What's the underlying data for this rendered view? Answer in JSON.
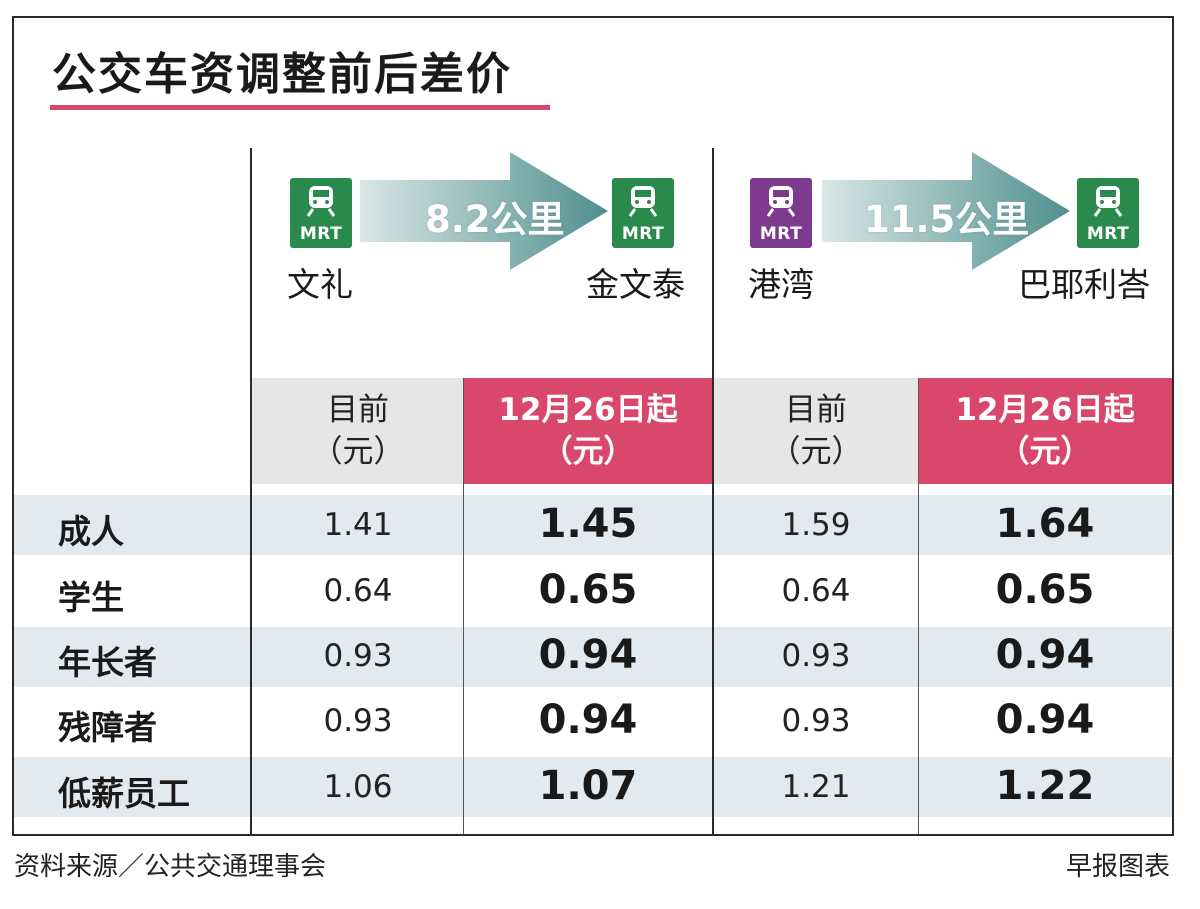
{
  "title": "公交车资调整前后差价",
  "routes": [
    {
      "from": "文礼",
      "to": "金文泰",
      "distance": "8.2公里",
      "from_line_color": "#2a8a4e",
      "to_line_color": "#2a8a4e",
      "from_badge": "MRT",
      "to_badge": "MRT",
      "from_icon": "train-icon",
      "to_icon": "train-icon"
    },
    {
      "from": "港湾",
      "to": "巴耶利峇",
      "distance": "11.5公里",
      "from_line_color": "#7d3a8f",
      "to_line_color": "#2a8a4e",
      "from_badge": "MRT",
      "to_badge": "MRT",
      "from_icon": "train-icon",
      "to_icon": "train-icon"
    }
  ],
  "column_headers": {
    "current_line1": "目前",
    "current_line2": "（元）",
    "new_line1": "12月26日起",
    "new_line2": "（元）"
  },
  "chart_data": {
    "type": "table",
    "title": "公交车资调整前后差价",
    "columns": [
      "文礼→金文泰 目前（元）",
      "文礼→金文泰 12月26日起（元）",
      "港湾→巴耶利峇 目前（元）",
      "港湾→巴耶利峇 12月26日起（元）"
    ],
    "rows": [
      {
        "category": "成人",
        "values": [
          "1.41",
          "1.45",
          "1.59",
          "1.64"
        ]
      },
      {
        "category": "学生",
        "values": [
          "0.64",
          "0.65",
          "0.64",
          "0.65"
        ]
      },
      {
        "category": "年长者",
        "values": [
          "0.93",
          "0.94",
          "0.93",
          "0.94"
        ]
      },
      {
        "category": "残障者",
        "values": [
          "0.93",
          "0.94",
          "0.93",
          "0.94"
        ]
      },
      {
        "category": "低薪员工",
        "values": [
          "1.06",
          "1.07",
          "1.21",
          "1.22"
        ]
      }
    ]
  },
  "colors": {
    "accent_red": "#d9486a",
    "row_shade": "#e2e9ef",
    "header_grey": "#e6e6e6",
    "arrow_teal": "#4f8f8f"
  },
  "footer": {
    "source": "资料来源／公共交通理事会",
    "credit": "早报图表"
  }
}
